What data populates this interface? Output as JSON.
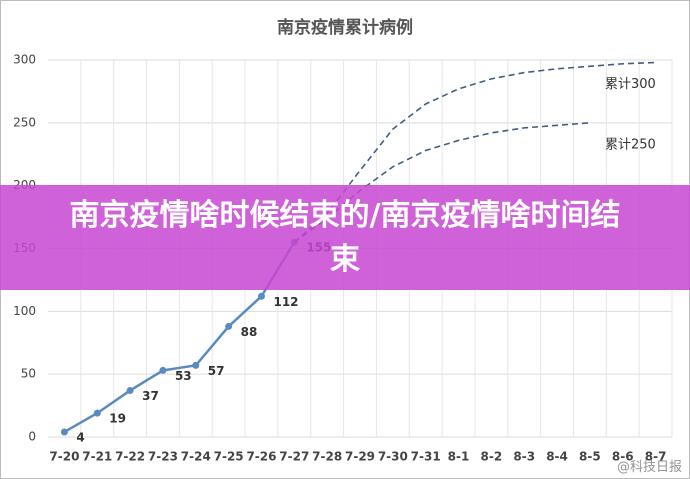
{
  "chart_data": {
    "type": "line",
    "title": "南京疫情累计病例",
    "categories": [
      "7-20",
      "7-21",
      "7-22",
      "7-23",
      "7-24",
      "7-25",
      "7-26",
      "7-27",
      "7-28",
      "7-29",
      "7-30",
      "7-31",
      "8-1",
      "8-2",
      "8-3",
      "8-4",
      "8-5",
      "8-6",
      "8-7"
    ],
    "series": [
      {
        "color": "#5b8ac0",
        "values": [
          4,
          19,
          37,
          53,
          57,
          88,
          112,
          155,
          null,
          null,
          null,
          null,
          null,
          null,
          null,
          null,
          null,
          null,
          null
        ]
      },
      {
        "name": "累计300",
        "color": "#3f5f85",
        "dashed": true,
        "values": [
          null,
          null,
          null,
          null,
          null,
          null,
          null,
          155,
          178,
          212,
          245,
          265,
          277,
          285,
          290,
          293,
          295,
          297,
          298
        ]
      },
      {
        "name": "累计250",
        "color": "#3f5f85",
        "dashed": true,
        "values": [
          null,
          null,
          null,
          null,
          null,
          null,
          null,
          155,
          174,
          196,
          215,
          228,
          236,
          242,
          246,
          248,
          250,
          null,
          null
        ]
      }
    ],
    "ylim": [
      0,
      300
    ],
    "yticks": [
      0,
      50,
      100,
      150,
      200,
      250,
      300
    ],
    "grid": true
  },
  "banner": "南京疫情啥时候结束的/南京疫情啥时间结束",
  "watermark": "@科技日报"
}
